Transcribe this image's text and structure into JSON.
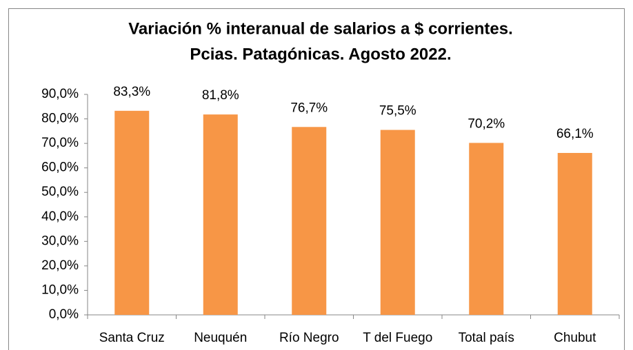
{
  "chart_data": {
    "type": "bar",
    "title": [
      "Variación % interanual de salarios a $ corrientes.",
      "Pcias. Patagónicas. Agosto 2022."
    ],
    "categories": [
      "Santa Cruz",
      "Neuquén",
      "Río Negro",
      "T del Fuego",
      "Total país",
      "Chubut"
    ],
    "values": [
      83.3,
      81.8,
      76.7,
      75.5,
      70.2,
      66.1
    ],
    "value_labels": [
      "83,3%",
      "81,8%",
      "76,7%",
      "75,5%",
      "70,2%",
      "66,1%"
    ],
    "color": "#f79646",
    "ylim": [
      0,
      90
    ],
    "yticks": [
      {
        "value": 0,
        "label": "0,0%"
      },
      {
        "value": 10,
        "label": "10,0%"
      },
      {
        "value": 20,
        "label": "20,0%"
      },
      {
        "value": 30,
        "label": "30,0%"
      },
      {
        "value": 40,
        "label": "40,0%"
      },
      {
        "value": 50,
        "label": "50,0%"
      },
      {
        "value": 60,
        "label": "60,0%"
      },
      {
        "value": 70,
        "label": "70,0%"
      },
      {
        "value": 80,
        "label": "80,0%"
      },
      {
        "value": 90,
        "label": "90,0%"
      }
    ],
    "grid": false
  }
}
